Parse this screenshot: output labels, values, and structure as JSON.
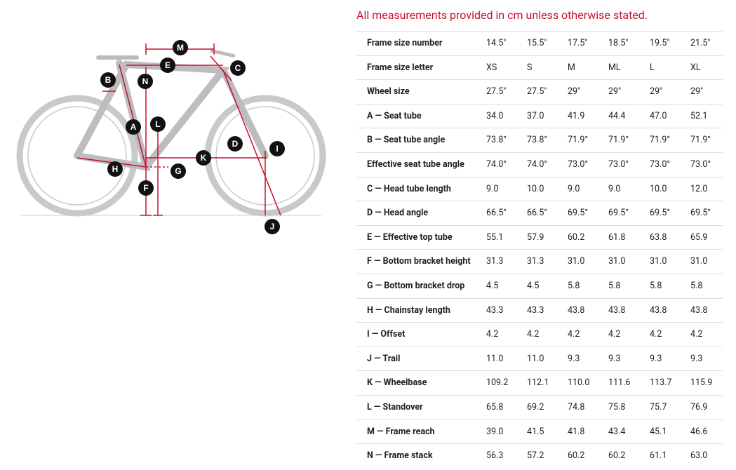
{
  "note": "All measurements provided in cm unless otherwise stated.",
  "diagram": {
    "labels": [
      "M",
      "E",
      "C",
      "B",
      "N",
      "L",
      "A",
      "D",
      "I",
      "K",
      "H",
      "G",
      "F",
      "J"
    ]
  },
  "table": {
    "rows": [
      [
        "Frame size number",
        "14.5\"",
        "15.5\"",
        "17.5\"",
        "18.5\"",
        "19.5\"",
        "21.5\""
      ],
      [
        "Frame size letter",
        "XS",
        "S",
        "M",
        "ML",
        "L",
        "XL"
      ],
      [
        "Wheel size",
        "27.5\"",
        "27.5\"",
        "29\"",
        "29\"",
        "29\"",
        "29\""
      ],
      [
        "A — Seat tube",
        "34.0",
        "37.0",
        "41.9",
        "44.4",
        "47.0",
        "52.1"
      ],
      [
        "B — Seat tube angle",
        "73.8°",
        "73.8°",
        "71.9°",
        "71.9°",
        "71.9°",
        "71.9°"
      ],
      [
        "Effective seat tube angle",
        "74.0°",
        "74.0°",
        "73.0°",
        "73.0°",
        "73.0°",
        "73.0°"
      ],
      [
        "C — Head tube length",
        "9.0",
        "10.0",
        "9.0",
        "9.0",
        "10.0",
        "12.0"
      ],
      [
        "D — Head angle",
        "66.5°",
        "66.5°",
        "69.5°",
        "69.5°",
        "69.5°",
        "69.5°"
      ],
      [
        "E — Effective top tube",
        "55.1",
        "57.9",
        "60.2",
        "61.8",
        "63.8",
        "65.9"
      ],
      [
        "F — Bottom bracket height",
        "31.3",
        "31.3",
        "31.0",
        "31.0",
        "31.0",
        "31.0"
      ],
      [
        "G — Bottom bracket drop",
        "4.5",
        "4.5",
        "5.8",
        "5.8",
        "5.8",
        "5.8"
      ],
      [
        "H — Chainstay length",
        "43.3",
        "43.3",
        "43.8",
        "43.8",
        "43.8",
        "43.8"
      ],
      [
        "I — Offset",
        "4.2",
        "4.2",
        "4.2",
        "4.2",
        "4.2",
        "4.2"
      ],
      [
        "J — Trail",
        "11.0",
        "11.0",
        "9.3",
        "9.3",
        "9.3",
        "9.3"
      ],
      [
        "K — Wheelbase",
        "109.2",
        "112.1",
        "110.0",
        "111.6",
        "113.7",
        "115.9"
      ],
      [
        "L — Standover",
        "65.8",
        "69.2",
        "74.8",
        "75.8",
        "75.7",
        "76.9"
      ],
      [
        "M — Frame reach",
        "39.0",
        "41.5",
        "41.8",
        "43.4",
        "45.1",
        "46.6"
      ],
      [
        "N — Frame stack",
        "56.3",
        "57.2",
        "60.2",
        "60.2",
        "61.1",
        "63.0"
      ]
    ]
  }
}
